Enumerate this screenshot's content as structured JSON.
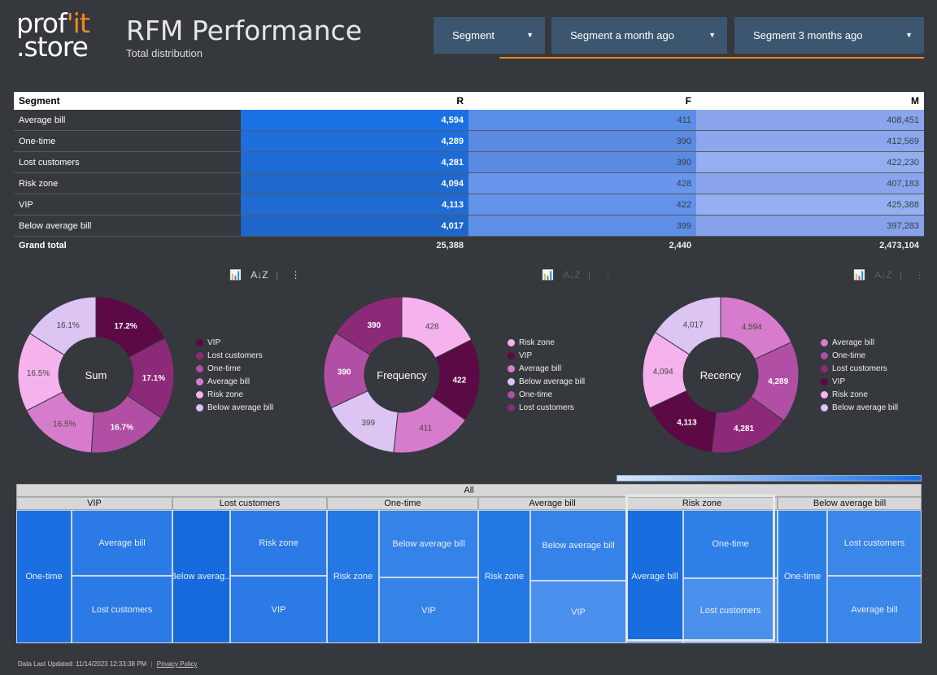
{
  "header": {
    "logo_line1": "prof",
    "logo_accent": "'it",
    "logo_line2": ".store",
    "title": "RFM Performance",
    "subtitle": "Total distribution"
  },
  "filters": [
    {
      "label": "Segment"
    },
    {
      "label": "Segment a month ago"
    },
    {
      "label": "Segment 3 months ago"
    }
  ],
  "table": {
    "columns": [
      "Segment",
      "R",
      "F",
      "M"
    ],
    "rows": [
      {
        "segment": "Average bill",
        "r": "4,594",
        "f": "411",
        "m": "408,451"
      },
      {
        "segment": "One-time",
        "r": "4,289",
        "f": "390",
        "m": "412,569"
      },
      {
        "segment": "Lost customers",
        "r": "4,281",
        "f": "390",
        "m": "422,230"
      },
      {
        "segment": "Risk zone",
        "r": "4,094",
        "f": "428",
        "m": "407,183"
      },
      {
        "segment": "VIP",
        "r": "4,113",
        "f": "422",
        "m": "425,388"
      },
      {
        "segment": "Below average bill",
        "r": "4,017",
        "f": "399",
        "m": "397,283"
      }
    ],
    "total": {
      "label": "Grand total",
      "r": "25,388",
      "f": "2,440",
      "m": "2,473,104"
    }
  },
  "colors": {
    "vip": "#5c0a45",
    "lost": "#8c2a78",
    "onetime": "#b04fa4",
    "avg": "#d77ccd",
    "risk": "#f6b2ec",
    "below": "#dcc4f3"
  },
  "chart_data": [
    {
      "type": "pie",
      "title": "Sum",
      "labels": [
        "VIP",
        "Lost customers",
        "One-time",
        "Average bill",
        "Risk zone",
        "Below average bill"
      ],
      "values": [
        17.2,
        17.1,
        16.7,
        16.5,
        16.5,
        16.1
      ],
      "display": [
        "17.2%",
        "17.1%",
        "16.7%",
        "16.5%",
        "16.5%",
        "16.1%"
      ]
    },
    {
      "type": "pie",
      "title": "Frequency",
      "labels": [
        "Risk zone",
        "VIP",
        "Average bill",
        "Below average bill",
        "One-time",
        "Lost customers"
      ],
      "values": [
        428,
        422,
        411,
        399,
        390,
        390
      ],
      "display": [
        "428",
        "422",
        "411",
        "399",
        "390",
        "390"
      ]
    },
    {
      "type": "pie",
      "title": "Recency",
      "labels": [
        "Average bill",
        "One-time",
        "Lost customers",
        "VIP",
        "Risk zone",
        "Below average bill"
      ],
      "values": [
        4594,
        4289,
        4281,
        4113,
        4094,
        4017
      ],
      "display": [
        "4,594",
        "4,289",
        "4,281",
        "4,113",
        "4,094",
        "4,017"
      ]
    }
  ],
  "treemap": {
    "root": "All",
    "groups": [
      {
        "header": "VIP",
        "cells": [
          "One-time",
          "Average bill",
          "Lost customers"
        ]
      },
      {
        "header": "Lost customers",
        "cells": [
          "Below averag...",
          "Risk zone",
          "VIP"
        ]
      },
      {
        "header": "One-time",
        "cells": [
          "Risk zone",
          "Below average bill",
          "VIP"
        ]
      },
      {
        "header": "Average bill",
        "cells": [
          "Risk zone",
          "Below average bill",
          "VIP"
        ]
      },
      {
        "header": "Risk zone",
        "cells": [
          "Average bill",
          "One-time",
          "Lost customers"
        ]
      },
      {
        "header": "Below average bill",
        "cells": [
          "One-time",
          "Lost customers",
          "Average bill"
        ]
      }
    ]
  },
  "footer": {
    "updated": "Data Last Updated: 11/14/2023 12:33:38 PM",
    "separator": "|",
    "privacy": "Privacy Policy"
  }
}
